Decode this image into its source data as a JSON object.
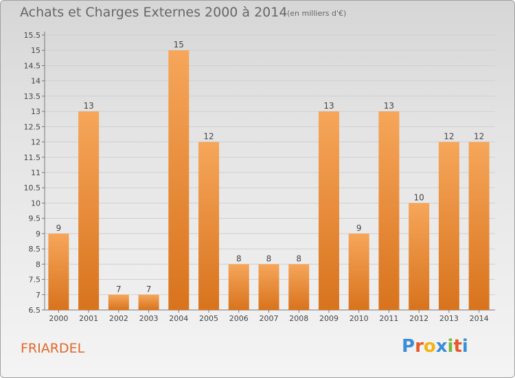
{
  "header": {
    "title": "Achats et Charges Externes 2000 à 2014",
    "subtitle": "(en milliers d'€)"
  },
  "footer": {
    "commune": "FRIARDEL",
    "logo_text": "Proxiti"
  },
  "colors": {
    "bar_light": "#f6a65a",
    "bar_dark": "#d8731d",
    "commune_text": "#e0662a",
    "logo_letters": [
      "#3a8ed6",
      "#e65a2a",
      "#f2b414",
      "#3a8ed6",
      "#78b83a",
      "#e65a2a",
      "#3a8ed6"
    ]
  },
  "chart_data": {
    "type": "bar",
    "categories": [
      "2000",
      "2001",
      "2002",
      "2003",
      "2004",
      "2005",
      "2006",
      "2007",
      "2008",
      "2009",
      "2010",
      "2011",
      "2012",
      "2013",
      "2014"
    ],
    "values": [
      9,
      13,
      7,
      7,
      15,
      12,
      8,
      8,
      8,
      13,
      9,
      13,
      10,
      12,
      12
    ],
    "value_labels": [
      "9",
      "13",
      "7",
      "7",
      "15",
      "12",
      "8",
      "8",
      "8",
      "13",
      "9",
      "13",
      "10",
      "12",
      "12"
    ],
    "ylim": [
      6.5,
      15.5
    ],
    "yticks": [
      "6.5",
      "7",
      "7.5",
      "8",
      "8.5",
      "9",
      "9.5",
      "10",
      "10.5",
      "11",
      "11.5",
      "12",
      "12.5",
      "13",
      "13.5",
      "14",
      "14.5",
      "15",
      "15.5"
    ],
    "xlabel": "",
    "ylabel": "",
    "grid": true
  }
}
